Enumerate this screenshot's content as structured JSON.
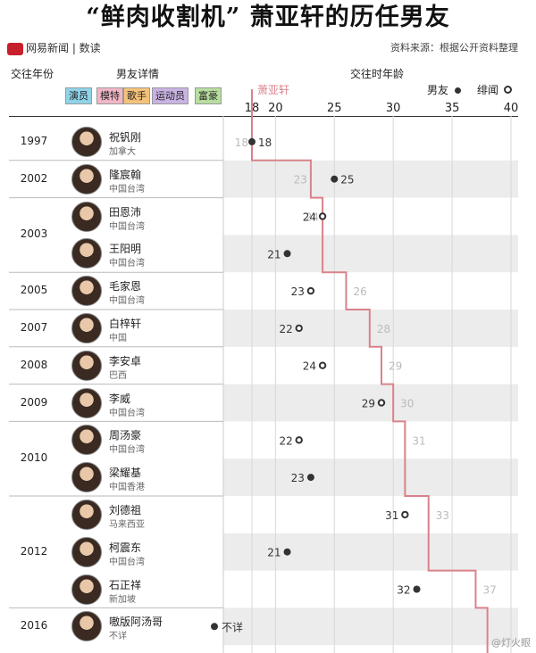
{
  "title": "“鲜肉收割机” 萧亚轩的历任男友",
  "brand": "网易新闻 | 数读",
  "source": "资料来源：根据公开资料整理",
  "headers": {
    "year": "交往年份",
    "detail": "男友详情",
    "age": "交往时年龄"
  },
  "legend": {
    "boyfriend": "男友",
    "rumor": "绯闻",
    "line_label": "萧亚轩"
  },
  "categories": [
    {
      "label": "演员",
      "color": "#8fd3e8"
    },
    {
      "label": "模特",
      "color": "#f2b6c6"
    },
    {
      "label": "歌手",
      "color": "#f4c27a"
    },
    {
      "label": "运动员",
      "color": "#c9b3e3"
    },
    {
      "label": "富豪",
      "color": "#b8dea0"
    }
  ],
  "colors": {
    "line": "#d9828a",
    "dot": "#333333",
    "stripe": "#ececec"
  },
  "watermark": "@灯火眼",
  "chart_data": {
    "type": "scatter",
    "title": "“鲜肉收割机” 萧亚轩的历任男友",
    "xlabel": "交往时年龄",
    "xlim": [
      18,
      40
    ],
    "xticks": [
      18,
      20,
      25,
      30,
      35,
      40
    ],
    "series": [
      {
        "name": "男友",
        "marker": "filled"
      },
      {
        "name": "绯闻",
        "marker": "hollow"
      },
      {
        "name": "萧亚轩",
        "marker": "line"
      }
    ],
    "rows": [
      {
        "year": "1997",
        "name": "祝钒刚",
        "origin": "加拿大",
        "bf_age": 18,
        "xiao_age": 18,
        "type": "boyfriend",
        "bf_label": "18",
        "xiao_label": "18"
      },
      {
        "year": "2002",
        "name": "隆宸翰",
        "origin": "中国台湾",
        "bf_age": 25,
        "xiao_age": 23,
        "type": "boyfriend",
        "bf_label": "25",
        "xiao_label": "23"
      },
      {
        "year": "2003",
        "name": "田恩沛",
        "origin": "中国台湾",
        "bf_age": 24,
        "xiao_age": 24,
        "type": "rumor",
        "bf_label": "24",
        "xiao_label": "24"
      },
      {
        "year": "",
        "name": "王阳明",
        "origin": "中国台湾",
        "bf_age": 21,
        "xiao_age": 24,
        "type": "boyfriend",
        "bf_label": "21",
        "xiao_label": ""
      },
      {
        "year": "2005",
        "name": "毛家恩",
        "origin": "中国台湾",
        "bf_age": 23,
        "xiao_age": 26,
        "type": "rumor",
        "bf_label": "23",
        "xiao_label": "26"
      },
      {
        "year": "2007",
        "name": "白梓轩",
        "origin": "中国",
        "bf_age": 22,
        "xiao_age": 28,
        "type": "rumor",
        "bf_label": "22",
        "xiao_label": "28"
      },
      {
        "year": "2008",
        "name": "李安卓",
        "origin": "巴西",
        "bf_age": 24,
        "xiao_age": 29,
        "type": "rumor",
        "bf_label": "24",
        "xiao_label": "29"
      },
      {
        "year": "2009",
        "name": "李威",
        "origin": "中国台湾",
        "bf_age": 29,
        "xiao_age": 30,
        "type": "rumor",
        "bf_label": "29",
        "xiao_label": "30"
      },
      {
        "year": "2010",
        "name": "周汤豪",
        "origin": "中国台湾",
        "bf_age": 22,
        "xiao_age": 31,
        "type": "rumor",
        "bf_label": "22",
        "xiao_label": "31"
      },
      {
        "year": "",
        "name": "梁耀基",
        "origin": "中国香港",
        "bf_age": 23,
        "xiao_age": 31,
        "type": "boyfriend",
        "bf_label": "23",
        "xiao_label": ""
      },
      {
        "year": "2012",
        "name": "刘德祖",
        "origin": "马来西亚",
        "bf_age": 31,
        "xiao_age": 33,
        "type": "rumor",
        "bf_label": "31",
        "xiao_label": "33"
      },
      {
        "year": "",
        "name": "柯震东",
        "origin": "中国台湾",
        "bf_age": 21,
        "xiao_age": 33,
        "type": "boyfriend",
        "bf_label": "21",
        "xiao_label": ""
      },
      {
        "year": "",
        "name": "石正祥",
        "origin": "新加坡",
        "bf_age": 32,
        "xiao_age": 37,
        "type": "boyfriend",
        "bf_label": "32",
        "xiao_label": "37"
      },
      {
        "year": "2016",
        "name": "嗷版阿汤哥",
        "origin": "不详",
        "bf_age": null,
        "xiao_age": 38,
        "type": "boyfriend",
        "bf_label": "不详",
        "xiao_label": ""
      }
    ]
  }
}
